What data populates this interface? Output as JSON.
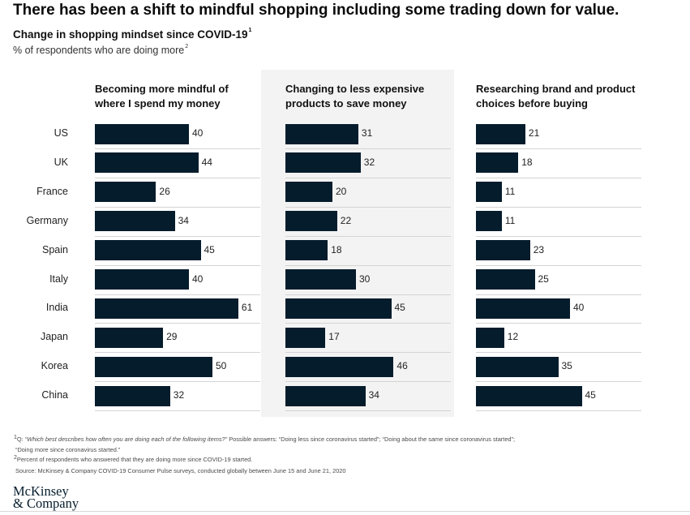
{
  "title": "There has been a shift to mindful shopping including some trading down for value.",
  "subtitle": "Change in shopping mindset since COVID-19",
  "subtitle_sup": "1",
  "unit_label": "% of respondents who are doing more",
  "unit_sup": "2",
  "chart_data": {
    "type": "bar",
    "orientation": "horizontal",
    "categories": [
      "US",
      "UK",
      "France",
      "Germany",
      "Spain",
      "Italy",
      "India",
      "Japan",
      "Korea",
      "China"
    ],
    "series": [
      {
        "name": "Becoming more mindful of where I spend my money",
        "values": [
          40,
          44,
          26,
          34,
          45,
          40,
          61,
          29,
          50,
          32
        ]
      },
      {
        "name": "Changing to less expensive products to save money",
        "values": [
          31,
          32,
          20,
          22,
          18,
          30,
          45,
          17,
          46,
          34
        ]
      },
      {
        "name": "Researching brand and product choices before buying",
        "values": [
          21,
          18,
          11,
          11,
          23,
          25,
          40,
          12,
          35,
          45
        ]
      }
    ],
    "panel_titles": [
      [
        "Becoming more mindful of",
        "where I spend my money"
      ],
      [
        "Changing to less expensive",
        "products to save money"
      ],
      [
        "Researching brand and product",
        "choices before buying"
      ]
    ],
    "xlim": [
      0,
      70
    ]
  },
  "footnotes": {
    "f1_sup": "1",
    "f1_prefix": "Q: ",
    "f1_question": "“Which best describes how often you are doing each of the following items?”",
    "f1_rest": " Possible answers: “Doing less since coronavirus started”; “Doing about the same since coronavirus started”;",
    "f1_line2": "“Doing more since coronavirus started.”",
    "f2_sup": "2",
    "f2": "Percent of respondents who answered that they are doing more since COVID-19 started.",
    "source": "Source: McKinsey & Company COVID-19 Consumer Pulse surveys, conducted globally between June 15 and June 21, 2020"
  },
  "logo": {
    "line1": "McKinsey",
    "line2": "& Company"
  }
}
